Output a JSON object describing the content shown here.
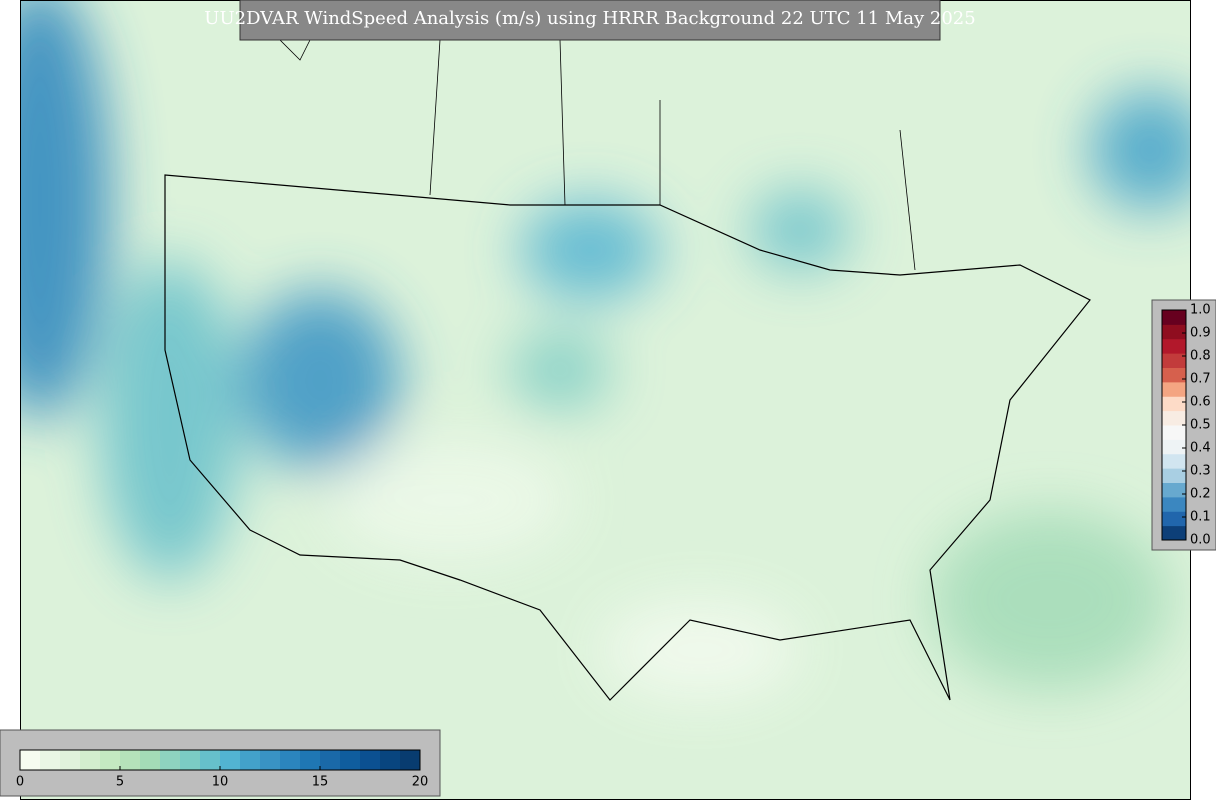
{
  "title": "UU2DVAR WindSpeed Analysis (m/s) using HRRR Background 22 UTC 11 May 2025",
  "wind_colorbar": {
    "lim": [
      0,
      20
    ],
    "ticks": [
      0,
      5,
      10,
      15,
      20
    ],
    "colors": [
      "#f7fcf0",
      "#eaf7e4",
      "#e0f3db",
      "#d3eecd",
      "#c4e9c1",
      "#b5e2ba",
      "#a3dbb7",
      "#8ed3bf",
      "#7bccc4",
      "#66c0cb",
      "#52b4d2",
      "#43a2ca",
      "#3993c4",
      "#2b85be",
      "#1f77b4",
      "#1a69a8",
      "#0f5d9e",
      "#0b5091",
      "#08457f",
      "#083c70"
    ]
  },
  "ratio_colorbar": {
    "lim": [
      0,
      1
    ],
    "ticks": [
      {
        "value": 0,
        "label": "0.0"
      },
      {
        "value": 0.1,
        "label": "0.1"
      },
      {
        "value": 0.2,
        "label": "0.2"
      },
      {
        "value": 0.3,
        "label": "0.3"
      },
      {
        "value": 0.4,
        "label": "0.4"
      },
      {
        "value": 0.5,
        "label": "0.5"
      },
      {
        "value": 0.6,
        "label": "0.6"
      },
      {
        "value": 0.7,
        "label": "0.7"
      },
      {
        "value": 0.8,
        "label": "0.8"
      },
      {
        "value": 0.9,
        "label": "0.9"
      },
      {
        "value": 1.0,
        "label": "1.0"
      }
    ],
    "colors": [
      "#0d3f78",
      "#2166ac",
      "#3b87c0",
      "#67a9cf",
      "#a9cfe3",
      "#d1e5f0",
      "#eef3f5",
      "#f7f7f7",
      "#f8ece3",
      "#fddbc7",
      "#f4a582",
      "#d6604d",
      "#c23b3b",
      "#b2182b",
      "#8f0d1f",
      "#67001f"
    ]
  }
}
